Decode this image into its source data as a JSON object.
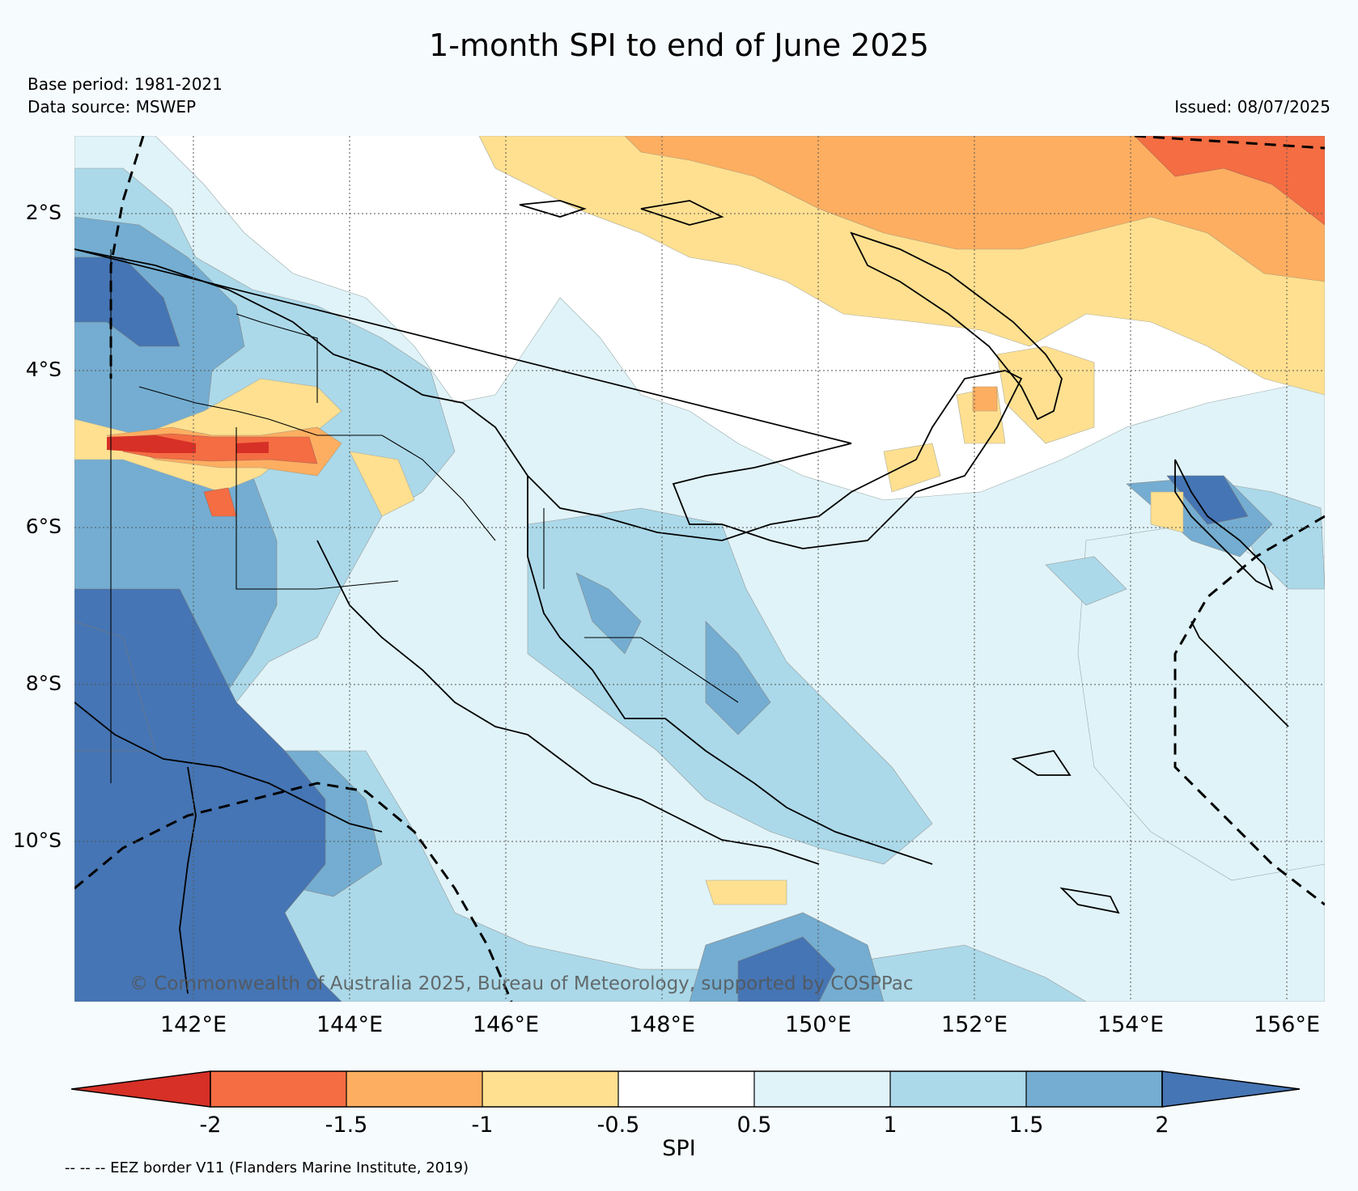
{
  "title": "1-month SPI to end of June 2025",
  "base_period": "Base period: 1981-2021",
  "data_source": "Data source: MSWEP",
  "issued": "Issued: 08/07/2025",
  "copyright": "© Commonwealth of Australia 2025, Bureau of Meteorology, supported by COSPPac",
  "footnote": "-- -- -- EEZ border V11 (Flanders Marine Institute, 2019)",
  "map": {
    "lat_labels": [
      "2°S",
      "4°S",
      "6°S",
      "8°S",
      "10°S"
    ],
    "lon_labels": [
      "142°E",
      "144°E",
      "146°E",
      "148°E",
      "150°E",
      "152°E",
      "154°E",
      "156°E"
    ]
  },
  "legend": {
    "label": "SPI",
    "ticks": [
      "-2",
      "-1.5",
      "-1",
      "-0.5",
      "0.5",
      "1",
      "1.5",
      "2"
    ],
    "colors": {
      "below_-2": "#d73027",
      "-2_to_-1.5": "#f46d43",
      "-1.5_to_-1": "#fdae61",
      "-1_to_-0.5": "#fee090",
      "-0.5_to_0.5": "#ffffff",
      "0.5_to_1": "#e0f3f8",
      "1_to_1.5": "#abd9e9",
      "1.5_to_2": "#74add1",
      "above_2": "#4575b4"
    }
  }
}
